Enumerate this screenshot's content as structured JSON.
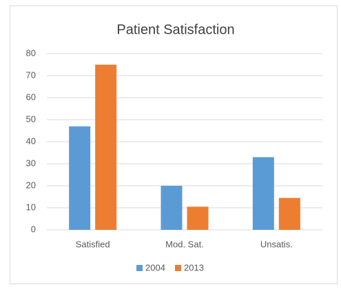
{
  "chart_data": {
    "type": "bar",
    "title": "Patient Satisfaction",
    "categories": [
      "Satisfied",
      "Mod. Sat.",
      "Unsatis."
    ],
    "series": [
      {
        "name": "2004",
        "color": "#5b9bd5",
        "values": [
          47,
          20,
          33
        ]
      },
      {
        "name": "2013",
        "color": "#ed7d31",
        "values": [
          75,
          10.5,
          14.5
        ]
      }
    ],
    "ylim": [
      0,
      80
    ],
    "yticks": [
      0,
      10,
      20,
      30,
      40,
      50,
      60,
      70,
      80
    ],
    "grid": true,
    "legend": "bottom"
  }
}
